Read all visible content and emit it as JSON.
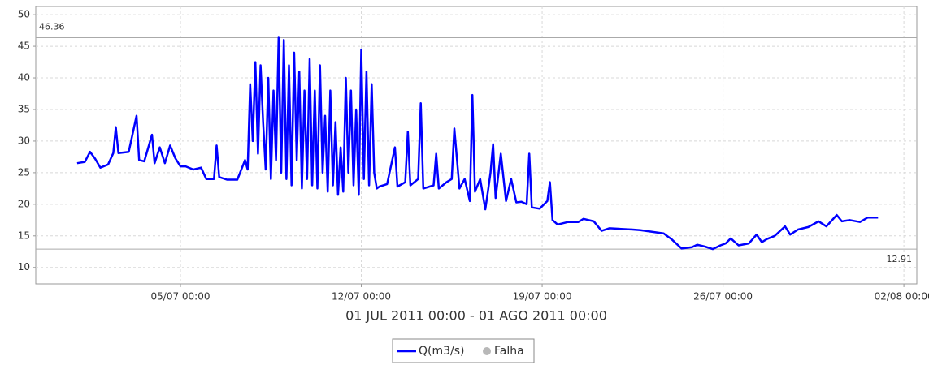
{
  "chart_data": {
    "type": "line",
    "subtitle": "01 JUL 2011 00:00 - 01 AGO 2011 00:00",
    "x": [
      0,
      0.3,
      0.5,
      0.7,
      0.9,
      1.2,
      1.4,
      1.5,
      1.6,
      2.0,
      2.3,
      2.4,
      2.6,
      2.9,
      3.0,
      3.2,
      3.4,
      3.6,
      3.8,
      4.0,
      4.2,
      4.5,
      4.8,
      5.0,
      5.3,
      5.4,
      5.5,
      5.8,
      6.2,
      6.5,
      6.6,
      6.7,
      6.8,
      6.9,
      7.0,
      7.1,
      7.2,
      7.3,
      7.4,
      7.5,
      7.6,
      7.7,
      7.8,
      7.9,
      8.0,
      8.1,
      8.2,
      8.3,
      8.4,
      8.5,
      8.6,
      8.7,
      8.8,
      8.9,
      9.0,
      9.1,
      9.2,
      9.3,
      9.4,
      9.5,
      9.6,
      9.7,
      9.8,
      9.9,
      10.0,
      10.1,
      10.2,
      10.3,
      10.4,
      10.5,
      10.6,
      10.7,
      10.8,
      10.9,
      11.0,
      11.1,
      11.2,
      11.3,
      11.4,
      11.5,
      11.6,
      11.7,
      12.0,
      12.3,
      12.4,
      12.7,
      12.8,
      12.9,
      13.2,
      13.3,
      13.4,
      13.8,
      13.9,
      14.0,
      14.3,
      14.5,
      14.6,
      14.8,
      15.0,
      15.2,
      15.3,
      15.4,
      15.6,
      15.8,
      15.9,
      16.0,
      16.1,
      16.2,
      16.4,
      16.6,
      16.8,
      17.0,
      17.2,
      17.4,
      17.5,
      17.6,
      17.9,
      18.2,
      18.3,
      18.4,
      18.6,
      19.0,
      19.4,
      19.6,
      20.0,
      20.3,
      20.6,
      21.5,
      21.8,
      22.0,
      22.5,
      22.7,
      23.0,
      23.4,
      23.8,
      24.0,
      24.3,
      24.6,
      24.9,
      25.1,
      25.3,
      25.6,
      26.0,
      26.3,
      26.5,
      26.7,
      27.0,
      27.4,
      27.6,
      27.9,
      28.3,
      28.7,
      29.0,
      29.4,
      29.6,
      29.9,
      30.3,
      30.6,
      31.0
    ],
    "series": [
      {
        "name": "Q(m3/s)",
        "color": "#0000ff",
        "values": [
          26.5,
          26.7,
          28.3,
          27.2,
          25.8,
          26.3,
          28.1,
          32.2,
          28.1,
          28.3,
          34,
          27,
          26.8,
          31,
          26.5,
          29,
          26.5,
          29.3,
          27.3,
          26,
          26,
          25.5,
          25.8,
          24,
          24,
          29.3,
          24.3,
          23.9,
          23.9,
          27,
          25.5,
          39,
          30,
          42.5,
          28,
          42,
          33,
          25.5,
          40,
          24,
          38,
          27,
          46.36,
          25,
          46,
          24,
          42,
          23,
          44,
          27,
          41,
          22.5,
          38,
          24,
          43,
          23,
          38,
          22.5,
          42,
          25,
          34,
          22,
          38,
          23,
          33,
          21.5,
          29,
          22,
          40,
          25,
          38,
          23,
          35,
          21.5,
          44.5,
          24,
          41,
          23,
          39,
          25,
          22.5,
          22.8,
          23.2,
          29,
          22.8,
          23.5,
          31.5,
          23,
          24,
          36,
          22.5,
          23,
          28,
          22.5,
          23.5,
          24,
          32,
          22.5,
          24,
          20.5,
          37.3,
          22,
          24,
          19.2,
          22,
          25,
          29.5,
          21,
          28,
          20.5,
          24,
          20.3,
          20.4,
          20,
          28,
          19.5,
          19.3,
          20.5,
          23.5,
          17.5,
          16.8,
          17.2,
          17.2,
          17.7,
          17.3,
          15.8,
          16.2,
          16,
          15.9,
          15.8,
          15.5,
          15.4,
          14.5,
          13,
          13.2,
          13.6,
          13.3,
          12.91,
          13.5,
          13.8,
          14.6,
          13.5,
          13.8,
          15.2,
          14,
          14.5,
          15,
          16.5,
          15.2,
          16,
          16.4,
          17.3,
          16.5,
          18.3,
          17.3,
          17.5,
          17.2,
          17.9,
          17.9
        ]
      }
    ],
    "legend_extra": {
      "name": "Falha",
      "color": "#b8b8b8"
    },
    "reference_lines": [
      46.36,
      12.91
    ],
    "xlim": [
      -1.6,
      32.5
    ],
    "xticks": [
      {
        "value": 4,
        "label": "05/07 00:00"
      },
      {
        "value": 11,
        "label": "12/07 00:00"
      },
      {
        "value": 18,
        "label": "19/07 00:00"
      },
      {
        "value": 25,
        "label": "26/07 00:00"
      },
      {
        "value": 32,
        "label": "02/08 00:00"
      }
    ],
    "ylim": [
      7.4,
      51.3
    ],
    "yticks": [
      10,
      15,
      20,
      25,
      30,
      35,
      40,
      45,
      50
    ],
    "grid": true
  }
}
